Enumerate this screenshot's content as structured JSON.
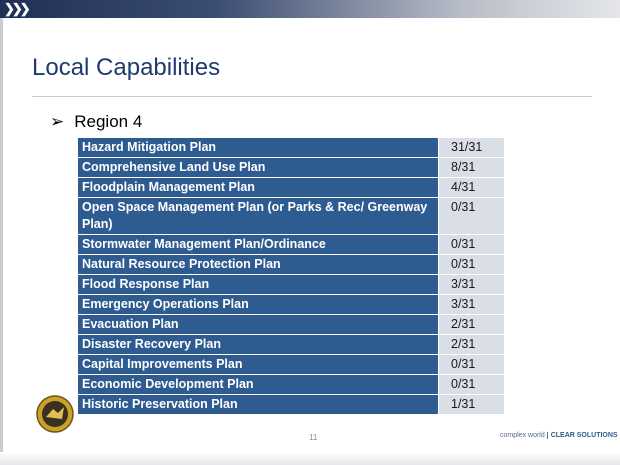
{
  "slide": {
    "title": "Local Capabilities",
    "bullet": "Region 4",
    "table": {
      "rows": [
        [
          "Hazard Mitigation Plan",
          "31/31"
        ],
        [
          "Comprehensive Land Use Plan",
          "8/31"
        ],
        [
          "Floodplain Management Plan",
          "4/31"
        ],
        [
          "Open Space Management Plan (or Parks & Rec/ Greenway Plan)",
          "0/31"
        ],
        [
          "Stormwater Management Plan/Ordinance",
          "0/31"
        ],
        [
          "Natural Resource Protection Plan",
          "0/31"
        ],
        [
          "Flood Response Plan",
          "3/31"
        ],
        [
          "Emergency Operations Plan",
          "3/31"
        ],
        [
          "Evacuation Plan",
          "2/31"
        ],
        [
          "Disaster Recovery Plan",
          "2/31"
        ],
        [
          "Capital Improvements Plan",
          "0/31"
        ],
        [
          "Economic Development Plan",
          "0/31"
        ],
        [
          "Historic Preservation Plan",
          "1/31"
        ]
      ]
    },
    "page_number": "11",
    "footer": {
      "tagline": "complex world",
      "brand": "CLEAR SOLUTIONS"
    }
  }
}
